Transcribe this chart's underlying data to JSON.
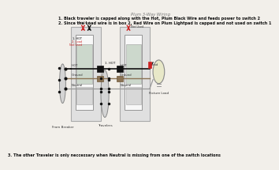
{
  "bg_color": "#f2efea",
  "title_top_right": "Plum 3-Way Wiring",
  "note1": "1. Black traveler is capped along with the Hot, Plum Black Wire and feeds power to switch 2",
  "note2": "2. Since the Load wire is in box 2, Red Wire on Plum Lightpad is capped and not used on switch 1",
  "note3": "3. The other Traveler is only neccessary when Neutral is missing from one of the switch locations",
  "traveler_label": "Travelers",
  "panel_label": "From Breaker",
  "fixture_label": "Fixture Load",
  "not_used_label": "Not Used",
  "label_hot": "1. HOT",
  "label_load": "2. Load\nNot Used",
  "label_ground1": "Ground",
  "label_hot1": "HOT",
  "label_neutral1": "Neutral",
  "label_ground2": "Ground",
  "label_hot2": "HOT",
  "label_neutral2": "Neutral",
  "label_load2": "Load"
}
